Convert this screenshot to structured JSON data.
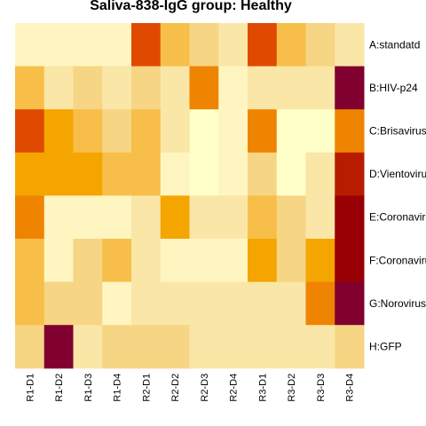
{
  "chart_data": {
    "type": "heatmap",
    "title": "Saliva-838-IgG group: Healthy",
    "columns": [
      "R1-D1",
      "R1-D2",
      "R1-D3",
      "R1-D4",
      "R2-D1",
      "R2-D2",
      "R2-D3",
      "R2-D4",
      "R3-D1",
      "R3-D2",
      "R3-D3",
      "R3-D4"
    ],
    "rows": [
      "A:standatd",
      "B:HIV-p24",
      "C:Brisavirus",
      "D:Vientovirus",
      "E:Coronavirus",
      "F:Coronavirus",
      "G:Norovirus",
      "H:GFP"
    ],
    "color_scale": [
      "#FFFFC8",
      "#FFF5C0",
      "#FAE6A7",
      "#F6D584",
      "#F7BF49",
      "#F5A500",
      "#EF8400",
      "#E04A00",
      "#B71C00",
      "#990005",
      "#800030"
    ],
    "values": [
      [
        1,
        1,
        1,
        1,
        7,
        4,
        3,
        2,
        7,
        4,
        3,
        2
      ],
      [
        4,
        2,
        3,
        2,
        3,
        2,
        6,
        1,
        2,
        2,
        2,
        10
      ],
      [
        7,
        5,
        4,
        3,
        4,
        2,
        0,
        1,
        6,
        0,
        0,
        6
      ],
      [
        5,
        5,
        5,
        4,
        4,
        1,
        0,
        1,
        3,
        0,
        2,
        8
      ],
      [
        6,
        1,
        1,
        1,
        2,
        5,
        2,
        2,
        4,
        3,
        2,
        9
      ],
      [
        4,
        1,
        3,
        4,
        2,
        1,
        1,
        1,
        5,
        3,
        5,
        9
      ],
      [
        4,
        3,
        3,
        1,
        2,
        2,
        2,
        2,
        2,
        2,
        6,
        10
      ],
      [
        3,
        10,
        2,
        3,
        3,
        3,
        2,
        2,
        2,
        2,
        2,
        3
      ]
    ],
    "value_range": [
      0,
      10
    ]
  }
}
